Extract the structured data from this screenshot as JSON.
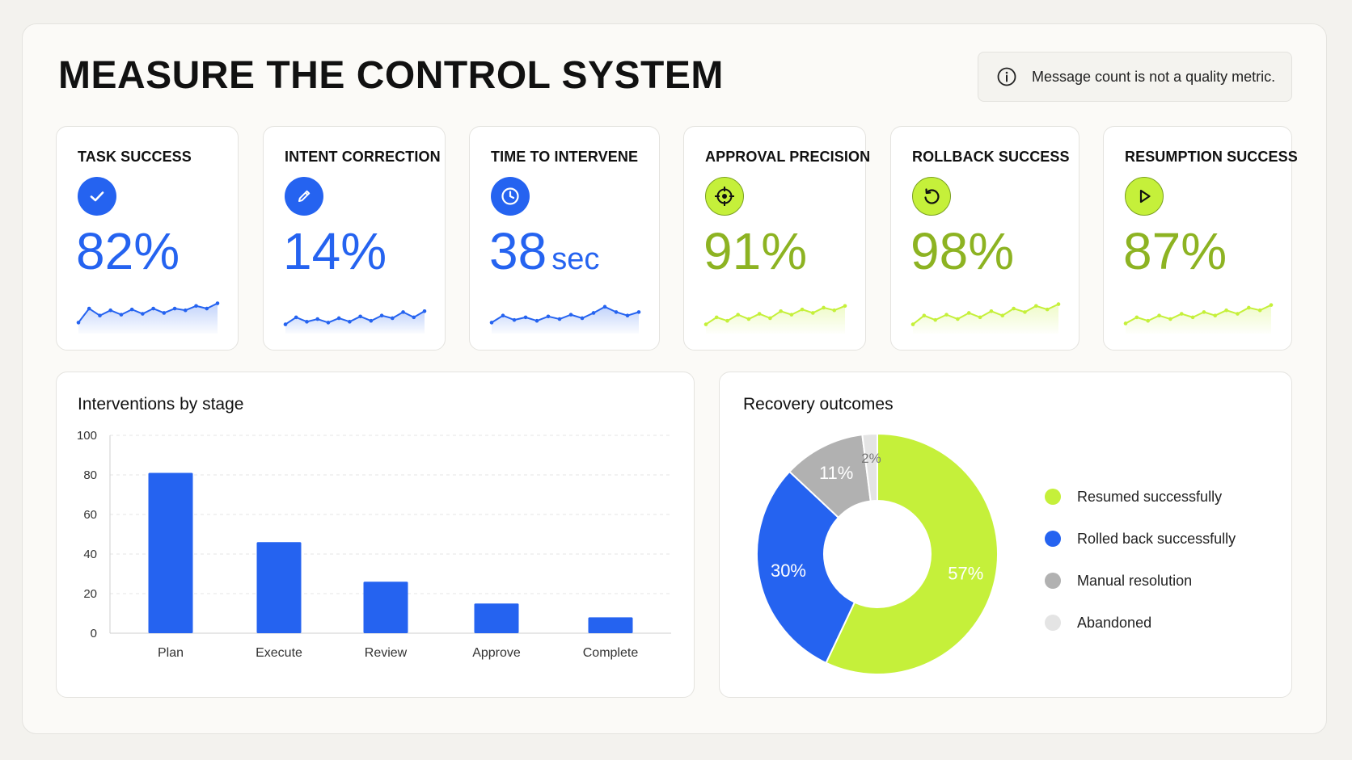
{
  "page": {
    "title": "MEASURE THE CONTROL SYSTEM",
    "note": {
      "icon": "info-icon",
      "text": "Message count is not a quality metric."
    }
  },
  "colors": {
    "blue": "#2563f0",
    "lime": "#c5f03a",
    "lime_text": "#8db322",
    "gray": "#b1b1b1",
    "light_gray": "#e4e4e4"
  },
  "kpis": [
    {
      "label": "TASK SUCCESS",
      "value": "82%",
      "unit": "",
      "icon": "check-icon",
      "color": "blue",
      "trend": [
        22,
        38,
        30,
        36,
        31,
        37,
        32,
        38,
        33,
        38,
        36,
        41,
        38,
        44
      ]
    },
    {
      "label": "INTENT CORRECTION",
      "value": "14%",
      "unit": "",
      "icon": "pencil-icon",
      "color": "blue",
      "trend": [
        20,
        28,
        23,
        26,
        22,
        27,
        23,
        29,
        24,
        30,
        27,
        34,
        28,
        35
      ]
    },
    {
      "label": "TIME TO INTERVENE",
      "value": "38",
      "unit": "sec",
      "icon": "clock-icon",
      "color": "blue",
      "trend": [
        22,
        30,
        25,
        28,
        24,
        29,
        26,
        31,
        27,
        33,
        40,
        34,
        30,
        34
      ]
    },
    {
      "label": "APPROVAL PRECISION",
      "value": "91%",
      "unit": "",
      "icon": "target-icon",
      "color": "lime",
      "trend": [
        20,
        28,
        24,
        31,
        26,
        32,
        27,
        35,
        31,
        37,
        33,
        39,
        36,
        41
      ]
    },
    {
      "label": "ROLLBACK SUCCESS",
      "value": "98%",
      "unit": "",
      "icon": "undo-icon",
      "color": "lime",
      "trend": [
        20,
        30,
        25,
        31,
        26,
        33,
        28,
        35,
        30,
        38,
        34,
        41,
        37,
        43
      ]
    },
    {
      "label": "RESUMPTION SUCCESS",
      "value": "87%",
      "unit": "",
      "icon": "play-icon",
      "color": "lime",
      "trend": [
        21,
        28,
        24,
        30,
        26,
        32,
        28,
        34,
        30,
        36,
        32,
        39,
        36,
        42
      ]
    }
  ],
  "chart_data": [
    {
      "type": "bar",
      "title": "Interventions by stage",
      "categories": [
        "Plan",
        "Execute",
        "Review",
        "Approve",
        "Complete"
      ],
      "values": [
        81,
        46,
        26,
        15,
        8
      ],
      "ylim": [
        0,
        100
      ],
      "yticks": [
        0,
        20,
        40,
        60,
        80,
        100
      ],
      "grid": true,
      "color": "#2563f0"
    },
    {
      "type": "pie",
      "title": "Recovery outcomes",
      "labels": [
        "Resumed successfully",
        "Rolled back successfully",
        "Manual resolution",
        "Abandoned"
      ],
      "values": [
        57,
        30,
        11,
        2
      ],
      "value_labels": [
        "57%",
        "30%",
        "11%",
        "2%"
      ],
      "colors": [
        "#c5f03a",
        "#2563f0",
        "#b1b1b1",
        "#e4e4e4"
      ],
      "legend": "right"
    }
  ]
}
